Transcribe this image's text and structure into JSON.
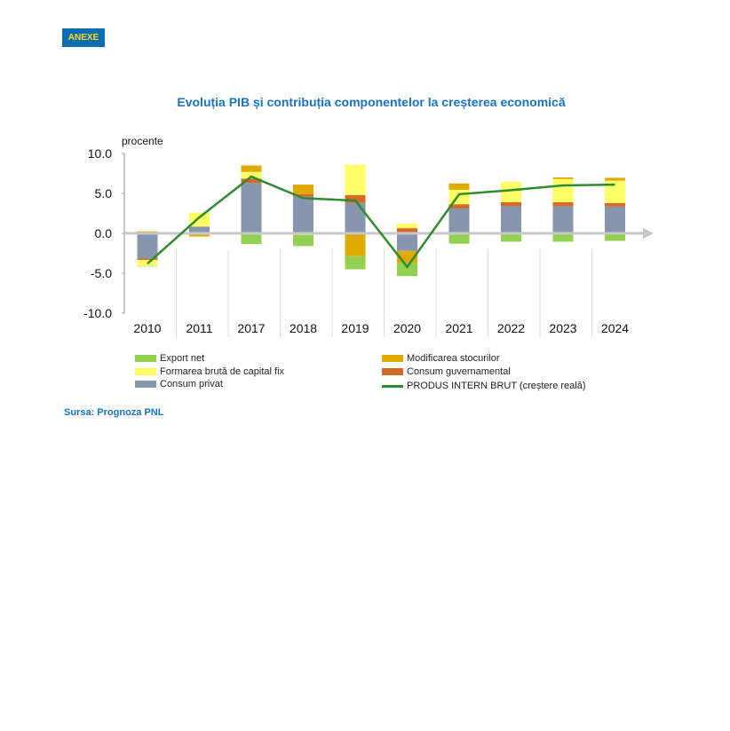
{
  "badge": "ANEXE",
  "source": "Sursa: Prognoza PNL",
  "chart_data": {
    "type": "bar",
    "stacked": true,
    "title": "Evoluția PIB și contribuția componentelor la creșterea economică",
    "ylabel": "procente",
    "xlabel": "",
    "ylim": [
      -10,
      10
    ],
    "yticks": [
      "10.0",
      "5.0",
      "0.0",
      "-5.0",
      "-10.0"
    ],
    "ytick_values": [
      10,
      5,
      0,
      -5,
      -10
    ],
    "categories": [
      "2010",
      "2011",
      "2017",
      "2018",
      "2019",
      "2020",
      "2021",
      "2022",
      "2023",
      "2024"
    ],
    "series": [
      {
        "name": "Consum privat",
        "color": "#8596ae",
        "values": [
          -3.15,
          0.85,
          6.3,
          4.6,
          3.8,
          -2.2,
          3.1,
          3.4,
          3.4,
          3.35
        ]
      },
      {
        "name": "Consum guvernamental",
        "color": "#d46a2a",
        "values": [
          -0.2,
          -0.2,
          0.55,
          0.3,
          1.0,
          0.65,
          0.55,
          0.5,
          0.5,
          0.45
        ]
      },
      {
        "name": "Formarea brută de capital fix",
        "color": "#ffff66",
        "values": [
          -0.75,
          1.75,
          0.85,
          -0.2,
          3.8,
          0.55,
          1.8,
          2.55,
          2.9,
          2.8
        ]
      },
      {
        "name": "Modificarea stocurilor",
        "color": "#e0aa00",
        "values": [
          0.25,
          -0.2,
          0.8,
          1.2,
          -2.85,
          -1.55,
          0.8,
          0.0,
          0.2,
          0.35
        ]
      },
      {
        "name": "Export net",
        "color": "#92d050",
        "values": [
          -0.05,
          0.0,
          -1.35,
          -1.4,
          -1.65,
          -1.6,
          -1.3,
          -1.05,
          -1.05,
          -0.95
        ]
      }
    ],
    "line": {
      "name": "PRODUS INTERN BRUT (creștere reală)",
      "color": "#2e8b2e",
      "values": [
        -3.8,
        2.0,
        7.1,
        4.4,
        4.1,
        -4.2,
        4.9,
        5.4,
        6.0,
        6.1
      ]
    },
    "legend": [
      {
        "label": "Export net",
        "color": "#92d050",
        "kind": "box"
      },
      {
        "label": "Modificarea stocurilor",
        "color": "#e0aa00",
        "kind": "box"
      },
      {
        "label": "Formarea brută de capital fix",
        "color": "#ffff66",
        "kind": "box"
      },
      {
        "label": "Consum guvernamental",
        "color": "#d46a2a",
        "kind": "box"
      },
      {
        "label": "Consum privat",
        "color": "#8596ae",
        "kind": "box"
      },
      {
        "label": "PRODUS INTERN BRUT (creștere reală)",
        "color": "#2e8b2e",
        "kind": "line"
      }
    ],
    "legend_position": "bottom",
    "grid": false
  }
}
